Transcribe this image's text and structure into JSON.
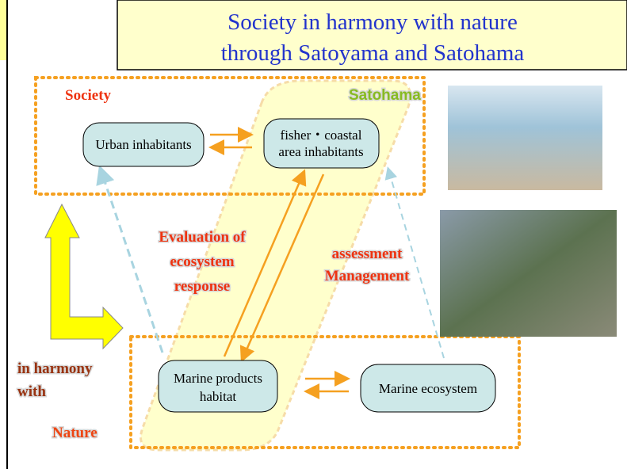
{
  "title": {
    "lines": [
      "Society in harmony with nature",
      "through Satoyama and Satohama"
    ]
  },
  "groups": {
    "society": "Society",
    "satohama": "Satohama"
  },
  "nodes": [
    {
      "lines": [
        "Urban inhabitants"
      ]
    },
    {
      "lines": [
        "fisher・coastal",
        "area inhabitants"
      ]
    },
    {
      "lines": [
        "Marine products",
        "habitat"
      ]
    },
    {
      "lines": [
        "Marine ecosystem"
      ]
    }
  ],
  "labels": {
    "evaluation": [
      "Evaluation of",
      "ecosystem",
      "response"
    ],
    "assessment": [
      "assessment",
      "Management"
    ],
    "harmony": [
      "in harmony",
      "with"
    ],
    "nature": "Nature"
  }
}
